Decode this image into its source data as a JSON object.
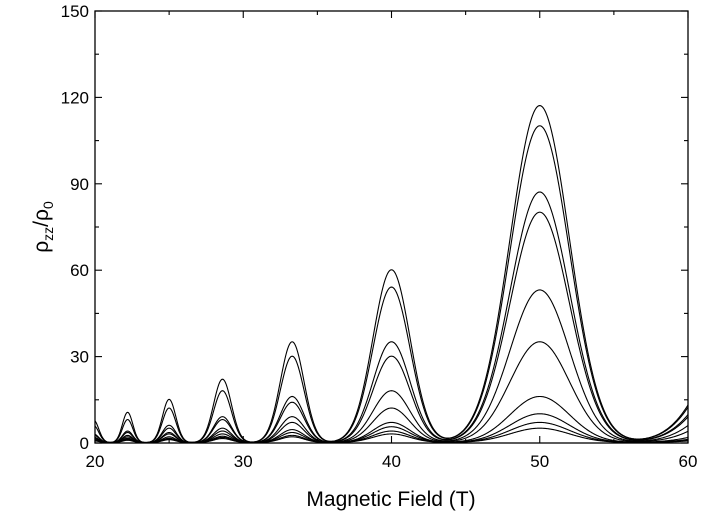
{
  "chart_data": {
    "type": "line",
    "title": "",
    "xlabel": "Magnetic Field (T)",
    "ylabel": {
      "rho": "ρ",
      "sub_zz": "zz",
      "slash": "/",
      "sub_0": "0"
    },
    "xlim": [
      20,
      60
    ],
    "ylim": [
      0,
      150
    ],
    "x_ticks": [
      "20",
      "30",
      "40",
      "50",
      "60"
    ],
    "y_ticks": [
      "0",
      "30",
      "60",
      "90",
      "120",
      "150"
    ],
    "grid": false,
    "legend": "none",
    "line_color": "#000000",
    "peak_positions_T": [
      22.2,
      25.0,
      28.6,
      33.3,
      40.0,
      50.0
    ],
    "peak_widths_T": [
      0.35,
      0.45,
      0.6,
      0.8,
      1.25,
      2.0
    ],
    "series": [
      {
        "peak_values": [
          10.5,
          15,
          22,
          35,
          60,
          117
        ]
      },
      {
        "peak_values": [
          8,
          12,
          18,
          30,
          54,
          110
        ]
      },
      {
        "peak_values": [
          4,
          6,
          9,
          16,
          35,
          87
        ]
      },
      {
        "peak_values": [
          3.5,
          5,
          8,
          14,
          30,
          80
        ]
      },
      {
        "peak_values": [
          2.5,
          3.5,
          5,
          9,
          18,
          53
        ]
      },
      {
        "peak_values": [
          2,
          3,
          4,
          7,
          12,
          35
        ]
      },
      {
        "peak_values": [
          1.5,
          2,
          3,
          4.5,
          7,
          16
        ]
      },
      {
        "peak_values": [
          1.2,
          1.5,
          2.2,
          3.5,
          5.5,
          10
        ]
      },
      {
        "peak_values": [
          1.0,
          1.2,
          1.8,
          2.5,
          4,
          7
        ]
      },
      {
        "peak_values": [
          0.8,
          1.0,
          1.4,
          2,
          3,
          5
        ]
      }
    ]
  }
}
